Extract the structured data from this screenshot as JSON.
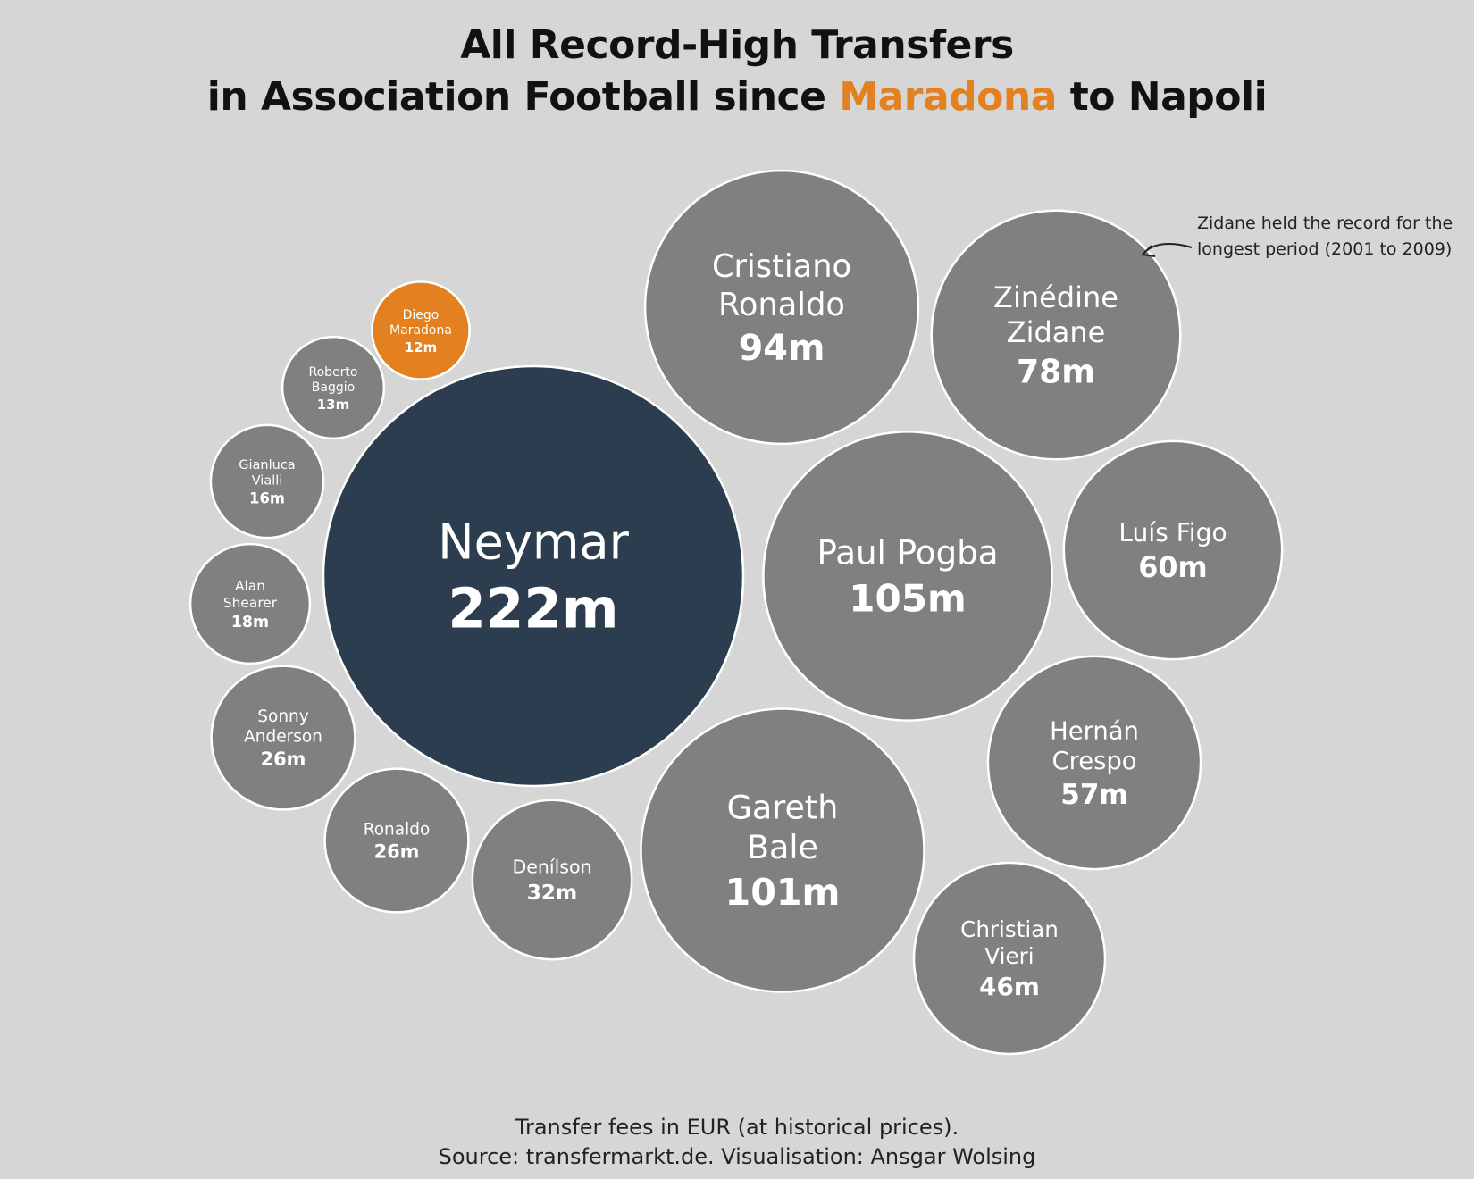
{
  "title": {
    "line1": "All Record-High Transfers",
    "line2_pre": "in Association Football since ",
    "line2_highlight": "Maradona",
    "line2_post": " to Napoli"
  },
  "annotation": "Zidane held the record for the longest period (2001 to 2009)",
  "footer": {
    "line1": "Transfer fees in EUR (at historical prices).",
    "line2": "Source: transfermarkt.de. Visualisation: Ansgar Wolsing"
  },
  "colors": {
    "background": "#d6d6d6",
    "bubble_default": "#808080",
    "bubble_max": "#2c3d50",
    "bubble_highlight": "#e3801f",
    "stroke": "#ffffff"
  },
  "chart_data": {
    "type": "bubble",
    "unit": "EUR (millions, historical prices)",
    "series": [
      {
        "name_lines": [
          "Neymar"
        ],
        "value": 222,
        "value_label": "222m",
        "style": "max"
      },
      {
        "name_lines": [
          "Paul Pogba"
        ],
        "value": 105,
        "value_label": "105m",
        "style": "default"
      },
      {
        "name_lines": [
          "Gareth",
          "Bale"
        ],
        "value": 101,
        "value_label": "101m",
        "style": "default"
      },
      {
        "name_lines": [
          "Cristiano",
          "Ronaldo"
        ],
        "value": 94,
        "value_label": "94m",
        "style": "default"
      },
      {
        "name_lines": [
          "Zinédine",
          "Zidane"
        ],
        "value": 78,
        "value_label": "78m",
        "style": "default"
      },
      {
        "name_lines": [
          "Luís Figo"
        ],
        "value": 60,
        "value_label": "60m",
        "style": "default"
      },
      {
        "name_lines": [
          "Hernán",
          "Crespo"
        ],
        "value": 57,
        "value_label": "57m",
        "style": "default"
      },
      {
        "name_lines": [
          "Christian",
          "Vieri"
        ],
        "value": 46,
        "value_label": "46m",
        "style": "default"
      },
      {
        "name_lines": [
          "Denílson"
        ],
        "value": 32,
        "value_label": "32m",
        "style": "default"
      },
      {
        "name_lines": [
          "Ronaldo"
        ],
        "value": 26,
        "value_label": "26m",
        "style": "default"
      },
      {
        "name_lines": [
          "Sonny",
          "Anderson"
        ],
        "value": 26,
        "value_label": "26m",
        "style": "default"
      },
      {
        "name_lines": [
          "Alan",
          "Shearer"
        ],
        "value": 18,
        "value_label": "18m",
        "style": "default"
      },
      {
        "name_lines": [
          "Gianluca",
          "Vialli"
        ],
        "value": 16,
        "value_label": "16m",
        "style": "default"
      },
      {
        "name_lines": [
          "Roberto",
          "Baggio"
        ],
        "value": 13,
        "value_label": "13m",
        "style": "default"
      },
      {
        "name_lines": [
          "Diego",
          "Maradona"
        ],
        "value": 12,
        "value_label": "12m",
        "style": "highlight"
      }
    ]
  }
}
